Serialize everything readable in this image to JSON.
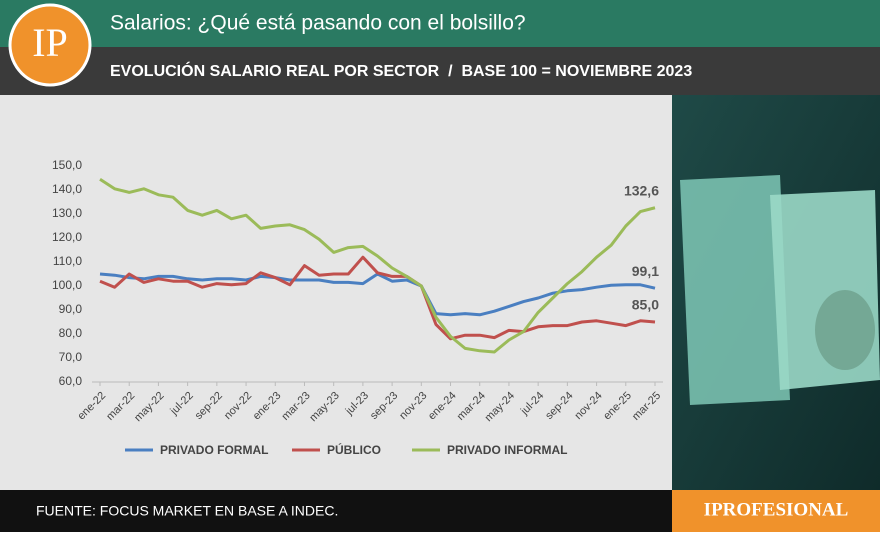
{
  "header": {
    "logo": "IP",
    "title": "Salarios: ¿Qué está pasando con el bolsillo?",
    "subtitle": "EVOLUCIÓN SALARIO REAL POR SECTOR  /  BASE 100 = NOVIEMBRE 2023"
  },
  "chart_data": {
    "type": "line",
    "categories": [
      "ene-22",
      null,
      "mar-22",
      null,
      "may-22",
      null,
      "jul-22",
      null,
      "sep-22",
      null,
      "nov-22",
      null,
      "ene-23",
      null,
      "mar-23",
      null,
      "may-23",
      null,
      "jul-23",
      null,
      "sep-23",
      null,
      "nov-23",
      null,
      "ene-24",
      null,
      "mar-24",
      null,
      "may-24",
      null,
      "jul-24",
      null,
      "sep-24",
      null,
      "nov-24",
      null,
      "ene-25",
      null,
      "mar-25"
    ],
    "series": [
      {
        "name": "PRIVADO FORMAL",
        "color": "#4a7fc1",
        "values": [
          105,
          104.5,
          103.5,
          103,
          104,
          104,
          103,
          102.5,
          103,
          103,
          102.5,
          104,
          103.5,
          102.5,
          102.5,
          102.5,
          101.5,
          101.5,
          101,
          105,
          102,
          102.5,
          100,
          88.5,
          88,
          88.5,
          88,
          89.5,
          91.5,
          93.5,
          95,
          97,
          98,
          98.5,
          99.5,
          100.3,
          100.5,
          100.5,
          99.1
        ],
        "value_labels": [
          null,
          null,
          null,
          null,
          null,
          null,
          null,
          null,
          null,
          null,
          null,
          null,
          null,
          null,
          null,
          null,
          null,
          null,
          null,
          null,
          null,
          null,
          null,
          null,
          null,
          null,
          null,
          null,
          null,
          null,
          null,
          null,
          null,
          null,
          null,
          null,
          null,
          null,
          "99,1"
        ]
      },
      {
        "name": "PÚBLICO",
        "color": "#c0504d",
        "values": [
          102,
          99.5,
          105,
          101.5,
          103,
          102,
          102,
          99.5,
          101,
          100.5,
          101,
          105.5,
          103.5,
          100.5,
          108.5,
          104.5,
          105,
          105,
          112,
          105.5,
          104,
          104,
          100,
          84,
          78,
          79.5,
          79.5,
          78.5,
          81.5,
          81,
          83,
          83.5,
          83.5,
          85,
          85.5,
          84.5,
          83.5,
          85.5,
          85.0
        ],
        "value_labels": [
          null,
          null,
          null,
          null,
          null,
          null,
          null,
          null,
          null,
          null,
          null,
          null,
          null,
          null,
          null,
          null,
          null,
          null,
          null,
          null,
          null,
          null,
          null,
          null,
          null,
          null,
          null,
          null,
          null,
          null,
          null,
          null,
          null,
          null,
          null,
          null,
          null,
          null,
          "85,0"
        ]
      },
      {
        "name": "PRIVADO INFORMAL",
        "color": "#9bbb59",
        "values": [
          144.5,
          140.5,
          139,
          140.5,
          138,
          137,
          131.5,
          129.5,
          131.5,
          128,
          129.5,
          124,
          125,
          125.5,
          123.5,
          119.5,
          114,
          116,
          116.5,
          112.5,
          107.5,
          104,
          100,
          87,
          79,
          74,
          73,
          72.5,
          77.5,
          81,
          89,
          95,
          101,
          106,
          112,
          117,
          125,
          131,
          132.6
        ],
        "value_labels": [
          null,
          null,
          null,
          null,
          null,
          null,
          null,
          null,
          null,
          null,
          null,
          null,
          null,
          null,
          null,
          null,
          null,
          null,
          null,
          null,
          null,
          null,
          null,
          null,
          null,
          null,
          null,
          null,
          null,
          null,
          null,
          null,
          null,
          null,
          null,
          null,
          null,
          null,
          "132,6"
        ]
      }
    ],
    "ylim": [
      60,
      150
    ],
    "yticks": [
      {
        "value": 60,
        "label": "60,0"
      },
      {
        "value": 70,
        "label": "70,0"
      },
      {
        "value": 80,
        "label": "80,0"
      },
      {
        "value": 90,
        "label": "90,0"
      },
      {
        "value": 100,
        "label": "100,0"
      },
      {
        "value": 110,
        "label": "110,0"
      },
      {
        "value": 120,
        "label": "120,0"
      },
      {
        "value": 130,
        "label": "130,0"
      },
      {
        "value": 140,
        "label": "140,0"
      },
      {
        "value": 150,
        "label": "150,0"
      }
    ],
    "grid": false,
    "legend": "bottom"
  },
  "footer": {
    "source": "FUENTE: FOCUS MARKET EN BASE A INDEC.",
    "brand": "IPROFESIONAL"
  }
}
